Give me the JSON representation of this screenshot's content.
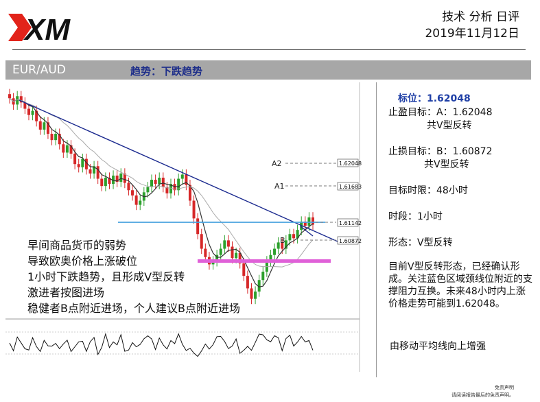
{
  "header": {
    "brand": "XM",
    "title": "技术 分析 日评",
    "date": "2019年11月12日"
  },
  "bar": {
    "pair": "EUR/AUD",
    "trend": "趋势：下跌趋势"
  },
  "chart_data": {
    "type": "line",
    "labels": {
      "a2": "A2",
      "a1": "A1",
      "b": "B"
    },
    "price_boxes": [
      "1.62048",
      "1.61683",
      "1.61142",
      "1.60872"
    ],
    "series": [
      {
        "values": [
          1.6248,
          1.6242,
          1.625,
          1.6244,
          1.6238,
          1.6232,
          1.6236,
          1.6226,
          1.6218,
          1.6225,
          1.6214,
          1.6208,
          1.6214,
          1.6204,
          1.6196,
          1.6203,
          1.6195,
          1.6185,
          1.6182,
          1.619,
          1.618,
          1.6176,
          1.6183,
          1.6171,
          1.6164,
          1.6172,
          1.6166,
          1.6174,
          1.6168,
          1.6176,
          1.6167,
          1.616,
          1.6155,
          1.6146,
          1.615,
          1.6158,
          1.6163,
          1.617,
          1.6166,
          1.6172,
          1.6163,
          1.6157,
          1.6166,
          1.616,
          1.6171,
          1.6175,
          1.6165,
          1.615,
          1.6133,
          1.6118,
          1.6104,
          1.6096,
          1.6089,
          1.6092,
          1.6098,
          1.6104,
          1.6112,
          1.6106,
          1.6095,
          1.61,
          1.609,
          1.6078,
          1.6066,
          1.6056,
          1.6063,
          1.6074,
          1.6082,
          1.6092,
          1.6098,
          1.6104,
          1.611,
          1.6104,
          1.6112,
          1.6118,
          1.6114,
          1.6122,
          1.613,
          1.6126,
          1.6134,
          1.6127
        ]
      }
    ]
  },
  "overlay": {
    "lines": [
      "早间商品货币的弱势",
      "导致欧奥价格上涨破位",
      "1小时下跌趋势，且形成V型反转",
      "激进者按图进场",
      "稳健者B点附近进场，个人建议B点附近进场"
    ]
  },
  "right": {
    "target_label": "标位：1.62048",
    "tp_line1": "止盈目标：A：1.62048",
    "tp_line2": "共V型反转",
    "sl_line1": "止损目标：B：1.60872",
    "sl_line2": "共V型反转",
    "time_limit": "目标时限：48小时",
    "period": "时段：1小时",
    "pattern": "形态：V型反转",
    "analysis": "目前V型反转形态，已经确认形成。关注蓝色区域颈线位附近的支撑阻力互换。未来48小时内上涨价格走势可能到1.62048。",
    "summary": "由移动平均线向上增强"
  },
  "footer": {
    "disclaimer_title": "免责声明",
    "disclaimer_text": "请阅读报告最后的免责声明。"
  },
  "colors": {
    "bar_bg": "#a7a7a7",
    "trend_text": "#1f2f8a",
    "target_blue": "#1f3fa6",
    "up_candle": "#2ca02c",
    "down_candle": "#d62728",
    "trendline": "#1b2a8f",
    "neckline": "#4aa3df",
    "support": "#e060d8"
  }
}
